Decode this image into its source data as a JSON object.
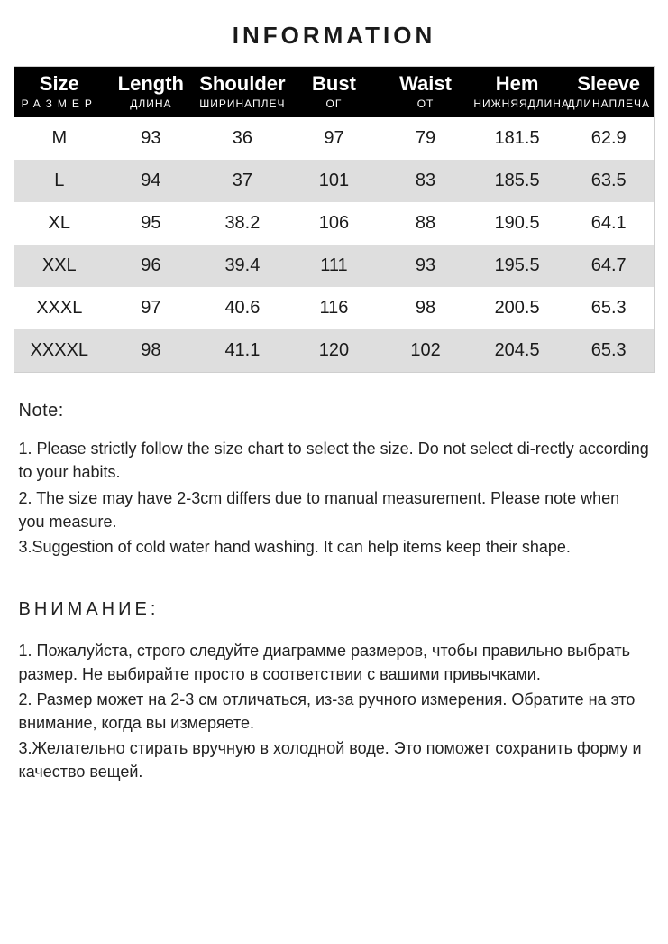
{
  "title": "INFORMATION",
  "table": {
    "type": "table",
    "header_bg": "#000000",
    "header_fg": "#ffffff",
    "row_even_bg": "#dedede",
    "row_odd_bg": "#ffffff",
    "border_color": "#cfcfcf",
    "columns": [
      {
        "main": "Size",
        "sub": "РАЗМЕР",
        "sub_spaced": true
      },
      {
        "main": "Length",
        "sub": "ДЛИНА",
        "sub_spaced": false
      },
      {
        "main": "Shoulder",
        "sub": "ШИРИНАПЛЕЧ",
        "sub_spaced": false
      },
      {
        "main": "Bust",
        "sub": "ОГ",
        "sub_spaced": false
      },
      {
        "main": "Waist",
        "sub": "ОТ",
        "sub_spaced": false
      },
      {
        "main": "Hem",
        "sub": "НИЖНЯЯДЛИНА",
        "sub_spaced": false
      },
      {
        "main": "Sleeve",
        "sub": "ДЛИНАПЛЕЧА",
        "sub_spaced": false
      }
    ],
    "rows": [
      [
        "M",
        "93",
        "36",
        "97",
        "79",
        "181.5",
        "62.9"
      ],
      [
        "L",
        "94",
        "37",
        "101",
        "83",
        "185.5",
        "63.5"
      ],
      [
        "XL",
        "95",
        "38.2",
        "106",
        "88",
        "190.5",
        "64.1"
      ],
      [
        "XXL",
        "96",
        "39.4",
        "111",
        "93",
        "195.5",
        "64.7"
      ],
      [
        "XXXL",
        "97",
        "40.6",
        "116",
        "98",
        "200.5",
        "65.3"
      ],
      [
        "XXXXL",
        "98",
        "41.1",
        "120",
        "102",
        "204.5",
        "65.3"
      ]
    ]
  },
  "note_en": {
    "heading": "Note:",
    "lines": [
      "1. Please strictly follow the size chart  to select the size. Do not select di-rectly according to your habits.",
      "2. The size may have 2-3cm differs due to manual measurement. Please note when you measure.",
      "3.Suggestion of cold water hand washing. It can help items keep their shape."
    ]
  },
  "note_ru": {
    "heading": "ВНИМАНИЕ:",
    "lines": [
      "1. Пожалуйста, строго следуйте диаграмме размеров, чтобы правильно выбрать размер. Не выбирайте просто в соответствии с вашими привычками.",
      "2. Размер может на 2-3 см отличаться, из-за ручного измерения. Обратите на это внимание, когда вы измеряете.",
      "3.Желательно стирать вручную в холодной воде. Это поможет сохранить форму и качество вещей."
    ]
  }
}
